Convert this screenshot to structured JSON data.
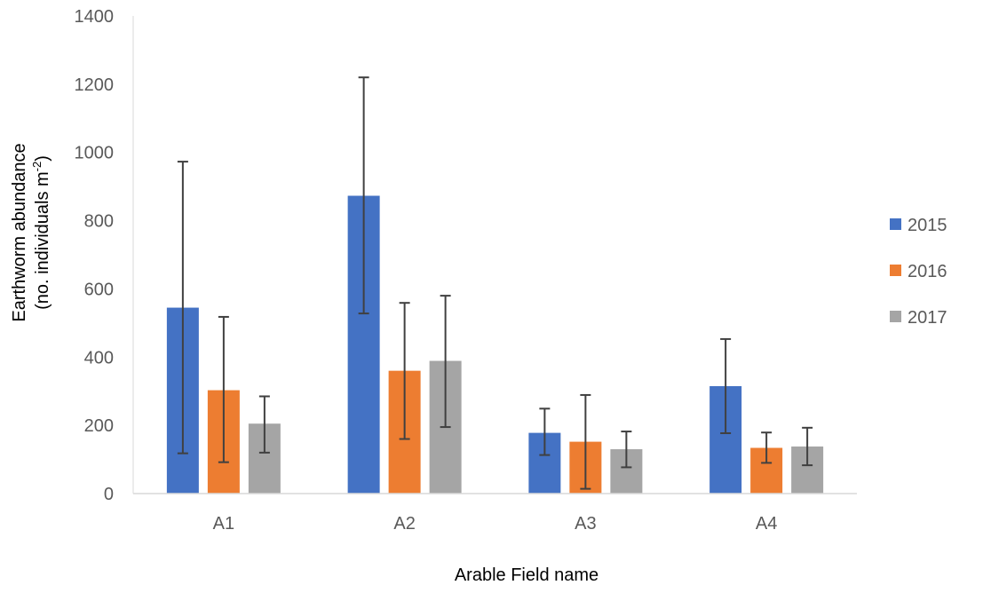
{
  "chart_data": {
    "type": "bar",
    "title": "",
    "xlabel": "Arable Field name",
    "ylabel_line1": "Earthworm abundance",
    "ylabel_line2_prefix": "(no. individuals m",
    "ylabel_line2_sup": "-2",
    "ylabel_line2_suffix": ")",
    "categories": [
      "A1",
      "A2",
      "A3",
      "A4"
    ],
    "ylim": [
      0,
      1400
    ],
    "yticks": [
      0,
      200,
      400,
      600,
      800,
      1000,
      1200,
      1400
    ],
    "grid": false,
    "legend_position": "right",
    "series": [
      {
        "name": "2015",
        "color": "#4472C4",
        "values": [
          545,
          873,
          178,
          315
        ],
        "error_low": [
          118,
          528,
          113,
          177
        ],
        "error_high": [
          973,
          1220,
          249,
          453
        ]
      },
      {
        "name": "2016",
        "color": "#ED7D31",
        "values": [
          303,
          360,
          152,
          134
        ],
        "error_low": [
          92,
          160,
          14,
          90
        ],
        "error_high": [
          518,
          559,
          289,
          179
        ]
      },
      {
        "name": "2017",
        "color": "#A5A5A5",
        "values": [
          205,
          389,
          130,
          138
        ],
        "error_low": [
          120,
          195,
          77,
          83
        ],
        "error_high": [
          285,
          580,
          182,
          193
        ]
      }
    ],
    "axis_color": "#D9D9D9",
    "error_bar_color": "#404040"
  }
}
